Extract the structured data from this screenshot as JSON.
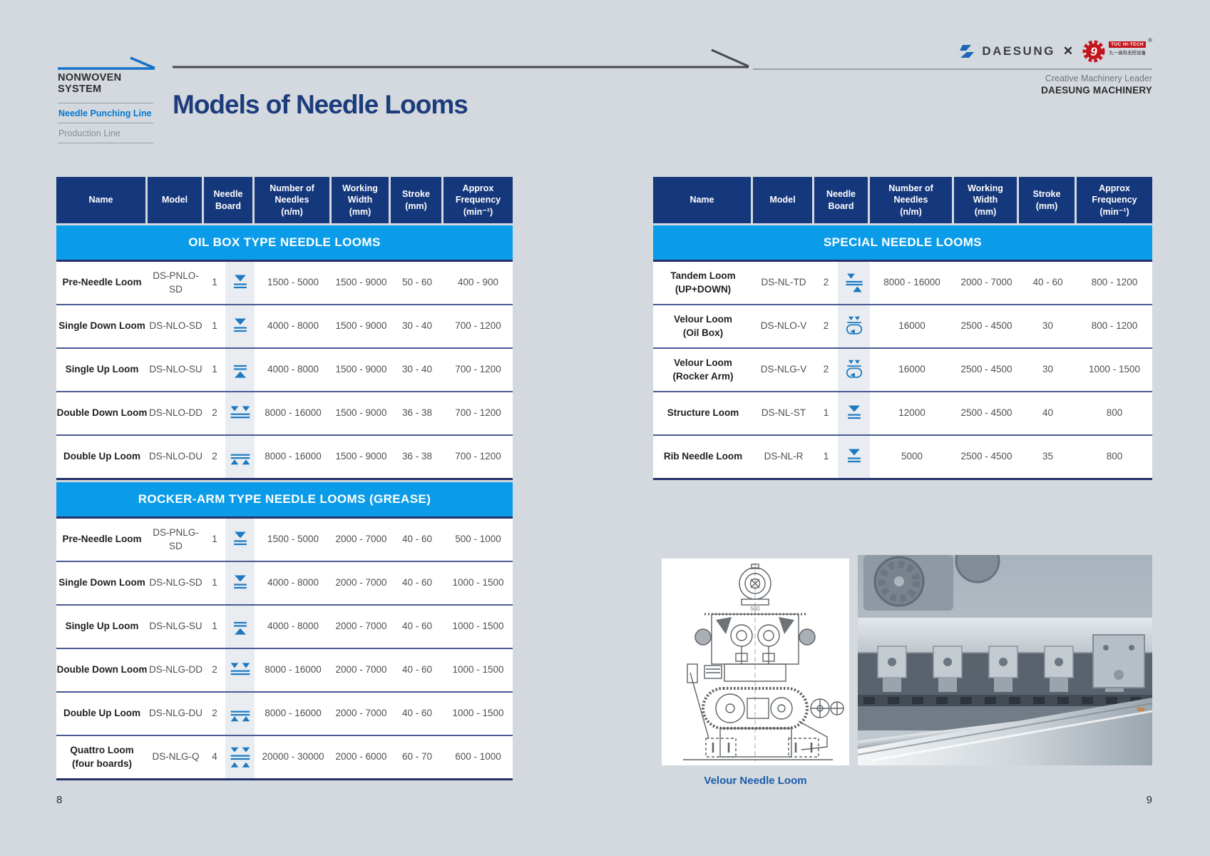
{
  "page": {
    "page_number_left": "8",
    "page_number_right": "9"
  },
  "sidebar": {
    "system_label": "NONWOVEN SYSTEM",
    "menu": [
      {
        "label": "Needle Punching Line",
        "active": true
      },
      {
        "label": "Production Line",
        "active": false
      }
    ]
  },
  "header": {
    "title": "Models of Needle Looms",
    "brand_daesung": "DAESUNG",
    "collab_mark": "✕",
    "partner_gear_numeral": "9",
    "partner_badge_line1": "TUC HI-TECH",
    "partner_badge_line2": "九一高科无纺设备",
    "registered_mark": "®",
    "tagline": "Creative Machinery Leader",
    "company": "DAESUNG MACHINERY"
  },
  "columns": [
    {
      "lines": [
        "Name"
      ]
    },
    {
      "lines": [
        "Model"
      ]
    },
    {
      "lines": [
        "Needle",
        "Board"
      ]
    },
    {
      "lines": [
        "Number of",
        "Needles",
        "(n/m)"
      ]
    },
    {
      "lines": [
        "Working",
        "Width",
        "(mm)"
      ]
    },
    {
      "lines": [
        "Stroke",
        "(mm)"
      ]
    },
    {
      "lines": [
        "Approx",
        "Frequency",
        "(min⁻¹)"
      ]
    }
  ],
  "tables": {
    "left": {
      "sections": [
        {
          "title": "OIL BOX TYPE NEEDLE LOOMS",
          "rows": [
            {
              "name": "Pre-Needle Loom",
              "name_sub": "",
              "model": "DS-PNLO-SD",
              "boards": "1",
              "icon": "single-down-icon",
              "needles": "1500 - 5000",
              "width": "1500 - 9000",
              "stroke": "50 - 60",
              "freq": "400 - 900"
            },
            {
              "name": "Single Down Loom",
              "name_sub": "",
              "model": "DS-NLO-SD",
              "boards": "1",
              "icon": "single-down-icon",
              "needles": "4000 - 8000",
              "width": "1500 - 9000",
              "stroke": "30 - 40",
              "freq": "700 - 1200"
            },
            {
              "name": "Single Up Loom",
              "name_sub": "",
              "model": "DS-NLO-SU",
              "boards": "1",
              "icon": "single-up-icon",
              "needles": "4000 - 8000",
              "width": "1500 - 9000",
              "stroke": "30 - 40",
              "freq": "700 - 1200"
            },
            {
              "name": "Double Down Loom",
              "name_sub": "",
              "model": "DS-NLO-DD",
              "boards": "2",
              "icon": "double-down-icon",
              "needles": "8000 - 16000",
              "width": "1500 - 9000",
              "stroke": "36 - 38",
              "freq": "700 - 1200"
            },
            {
              "name": "Double Up Loom",
              "name_sub": "",
              "model": "DS-NLO-DU",
              "boards": "2",
              "icon": "double-up-icon",
              "needles": "8000 - 16000",
              "width": "1500 - 9000",
              "stroke": "36 - 38",
              "freq": "700 - 1200"
            }
          ]
        },
        {
          "title": "ROCKER-ARM TYPE NEEDLE LOOMS (GREASE)",
          "rows": [
            {
              "name": "Pre-Needle Loom",
              "name_sub": "",
              "model": "DS-PNLG-SD",
              "boards": "1",
              "icon": "single-down-icon",
              "needles": "1500 - 5000",
              "width": "2000 - 7000",
              "stroke": "40 - 60",
              "freq": "500 - 1000"
            },
            {
              "name": "Single Down Loom",
              "name_sub": "",
              "model": "DS-NLG-SD",
              "boards": "1",
              "icon": "single-down-icon",
              "needles": "4000 - 8000",
              "width": "2000 - 7000",
              "stroke": "40 - 60",
              "freq": "1000 - 1500"
            },
            {
              "name": "Single Up Loom",
              "name_sub": "",
              "model": "DS-NLG-SU",
              "boards": "1",
              "icon": "single-up-icon",
              "needles": "4000 - 8000",
              "width": "2000 - 7000",
              "stroke": "40 - 60",
              "freq": "1000 - 1500"
            },
            {
              "name": "Double Down Loom",
              "name_sub": "",
              "model": "DS-NLG-DD",
              "boards": "2",
              "icon": "double-down-icon",
              "needles": "8000 - 16000",
              "width": "2000 - 7000",
              "stroke": "40 - 60",
              "freq": "1000 - 1500"
            },
            {
              "name": "Double Up Loom",
              "name_sub": "",
              "model": "DS-NLG-DU",
              "boards": "2",
              "icon": "double-up-icon",
              "needles": "8000 - 16000",
              "width": "2000 - 7000",
              "stroke": "40 - 60",
              "freq": "1000 - 1500"
            },
            {
              "name": "Quattro Loom",
              "name_sub": "(four boards)",
              "model": "DS-NLG-Q",
              "boards": "4",
              "icon": "quattro-icon",
              "needles": "20000 - 30000",
              "width": "2000 - 6000",
              "stroke": "60 - 70",
              "freq": "600 - 1000"
            }
          ]
        }
      ]
    },
    "right": {
      "sections": [
        {
          "title": "SPECIAL NEEDLE LOOMS",
          "rows": [
            {
              "name": "Tandem Loom",
              "name_sub": "(UP+DOWN)",
              "model": "DS-NL-TD",
              "boards": "2",
              "icon": "tandem-icon",
              "needles": "8000 - 16000",
              "width": "2000 - 7000",
              "stroke": "40 - 60",
              "freq": "800 - 1200"
            },
            {
              "name": "Velour Loom",
              "name_sub": "(Oil Box)",
              "model": "DS-NLO-V",
              "boards": "2",
              "icon": "velour-icon",
              "needles": "16000",
              "width": "2500 - 4500",
              "stroke": "30",
              "freq": "800 - 1200"
            },
            {
              "name": "Velour Loom",
              "name_sub": "(Rocker Arm)",
              "model": "DS-NLG-V",
              "boards": "2",
              "icon": "velour-icon",
              "needles": "16000",
              "width": "2500 - 4500",
              "stroke": "30",
              "freq": "1000 - 1500"
            },
            {
              "name": "Structure Loom",
              "name_sub": "",
              "model": "DS-NL-ST",
              "boards": "1",
              "icon": "single-down-icon",
              "needles": "12000",
              "width": "2500 - 4500",
              "stroke": "40",
              "freq": "800"
            },
            {
              "name": "Rib Needle Loom",
              "name_sub": "",
              "model": "DS-NL-R",
              "boards": "1",
              "icon": "single-down-icon",
              "needles": "5000",
              "width": "2500 - 4500",
              "stroke": "35",
              "freq": "800"
            }
          ]
        }
      ]
    }
  },
  "figures": {
    "drawing_caption": "Velour Needle Loom",
    "drawing_dimension_label": "560"
  },
  "colors": {
    "page_bg": "#d3d9de",
    "header_navy": "#15377b",
    "section_blue": "#0a9ce8",
    "icon_blue": "#1d7ac2",
    "accent_blue": "#0678d0",
    "title_navy": "#1d3c7c",
    "caption_blue": "#1a5cab",
    "partner_red": "#c3161c"
  }
}
